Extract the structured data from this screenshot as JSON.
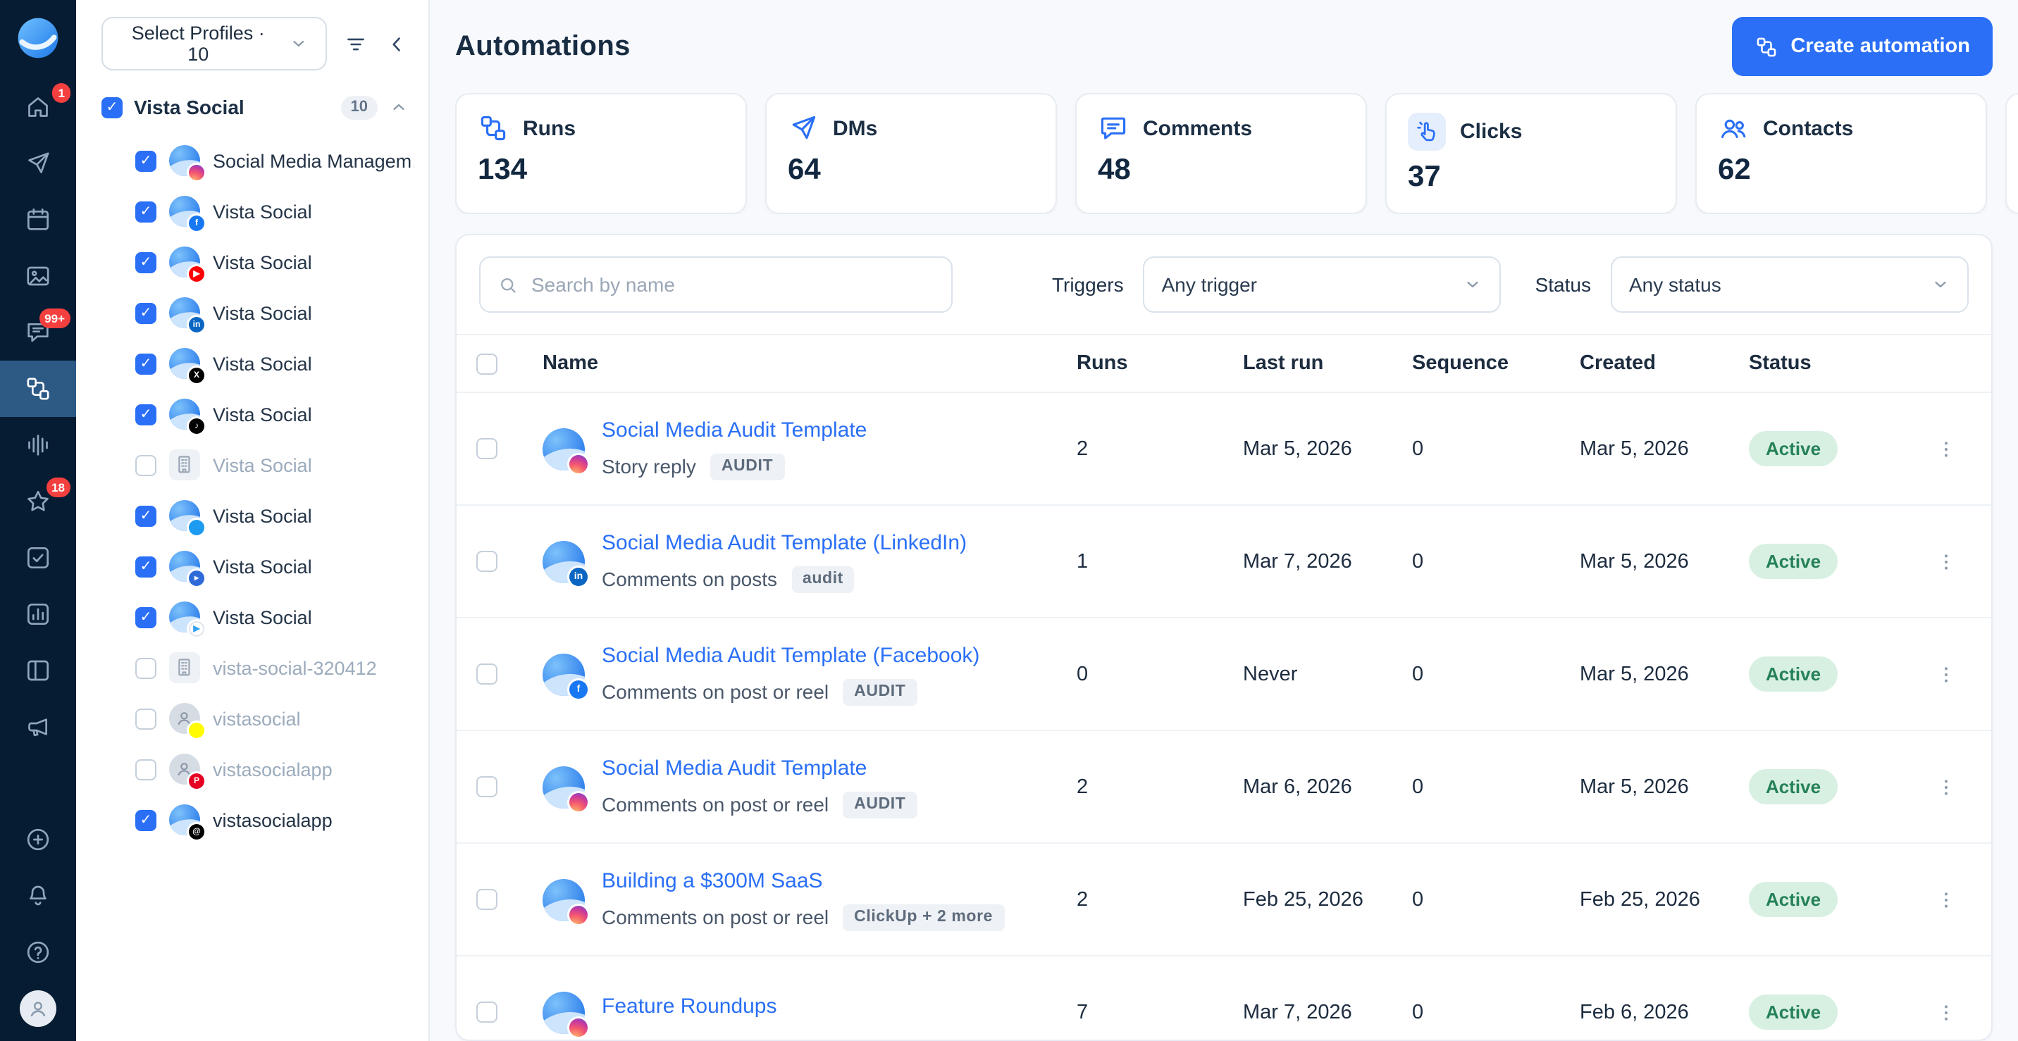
{
  "colors": {
    "accent": "#2a6ff6",
    "rail_bg": "#051c33",
    "active_nav_bg": "#2c5a85",
    "badge_red": "#f43f3f",
    "status_bg": "#d8f0e2",
    "status_text": "#258157"
  },
  "rail": {
    "badges": {
      "home": "1",
      "inbox": "99+",
      "reviews": "18"
    }
  },
  "sidebar": {
    "select_profiles_label": "Select Profiles · 10",
    "group": {
      "label": "Vista Social",
      "count": "10"
    },
    "items": [
      {
        "label": "Social Media Managem…",
        "platform": "instagram",
        "avatar": "vs",
        "checked": true,
        "muted": false
      },
      {
        "label": "Vista Social",
        "platform": "facebook",
        "avatar": "vs",
        "checked": true,
        "muted": false
      },
      {
        "label": "Vista Social",
        "platform": "youtube",
        "avatar": "vs",
        "checked": true,
        "muted": false
      },
      {
        "label": "Vista Social",
        "platform": "linkedin",
        "avatar": "vs",
        "checked": true,
        "muted": false
      },
      {
        "label": "Vista Social",
        "platform": "x",
        "avatar": "vs",
        "checked": true,
        "muted": false
      },
      {
        "label": "Vista Social",
        "platform": "tiktok",
        "avatar": "vs",
        "checked": true,
        "muted": false
      },
      {
        "label": "Vista Social",
        "platform": "business",
        "avatar": "building",
        "checked": false,
        "muted": true
      },
      {
        "label": "Vista Social",
        "platform": "twitter",
        "avatar": "vs",
        "checked": true,
        "muted": false
      },
      {
        "label": "Vista Social",
        "platform": "telegram",
        "avatar": "vs",
        "checked": true,
        "muted": false
      },
      {
        "label": "Vista Social",
        "platform": "googleplay",
        "avatar": "vs",
        "checked": true,
        "muted": false
      },
      {
        "label": "vista-social-320412",
        "platform": "business",
        "avatar": "building",
        "checked": false,
        "muted": true
      },
      {
        "label": "vistasocial",
        "platform": "snapchat",
        "avatar": "person",
        "checked": false,
        "muted": true
      },
      {
        "label": "vistasocialapp",
        "platform": "pinterest",
        "avatar": "person",
        "checked": false,
        "muted": true
      },
      {
        "label": "vistasocialapp",
        "platform": "threads",
        "avatar": "vs",
        "checked": true,
        "muted": false
      }
    ]
  },
  "header": {
    "title": "Automations",
    "create_label": "Create automation"
  },
  "stats": [
    {
      "id": "runs",
      "icon": "circuit",
      "label": "Runs",
      "value": "134"
    },
    {
      "id": "dms",
      "icon": "send",
      "label": "DMs",
      "value": "64"
    },
    {
      "id": "comments",
      "icon": "comments",
      "label": "Comments",
      "value": "48"
    },
    {
      "id": "clicks",
      "icon": "clicks",
      "label": "Clicks",
      "value": "37"
    },
    {
      "id": "contacts",
      "icon": "contacts",
      "label": "Contacts",
      "value": "62"
    }
  ],
  "filters": {
    "search_placeholder": "Search by name",
    "triggers_label": "Triggers",
    "triggers_value": "Any trigger",
    "status_label": "Status",
    "status_value": "Any status"
  },
  "table": {
    "columns": [
      "Name",
      "Runs",
      "Last run",
      "Sequence",
      "Created",
      "Status"
    ],
    "rows": [
      {
        "name": "Social Media Audit Template",
        "platform": "instagram",
        "trigger": "Story reply",
        "tag": "AUDIT",
        "runs": "2",
        "last_run": "Mar 5, 2026",
        "sequence": "0",
        "created": "Mar 5, 2026",
        "status": "Active"
      },
      {
        "name": "Social Media Audit Template (LinkedIn)",
        "platform": "linkedin",
        "trigger": "Comments on posts",
        "tag": "audit",
        "runs": "1",
        "last_run": "Mar 7, 2026",
        "sequence": "0",
        "created": "Mar 5, 2026",
        "status": "Active"
      },
      {
        "name": "Social Media Audit Template (Facebook)",
        "platform": "facebook",
        "trigger": "Comments on post or reel",
        "tag": "AUDIT",
        "runs": "0",
        "last_run": "Never",
        "sequence": "0",
        "created": "Mar 5, 2026",
        "status": "Active"
      },
      {
        "name": "Social Media Audit Template",
        "platform": "instagram",
        "trigger": "Comments on post or reel",
        "tag": "AUDIT",
        "runs": "2",
        "last_run": "Mar 6, 2026",
        "sequence": "0",
        "created": "Mar 5, 2026",
        "status": "Active"
      },
      {
        "name": "Building a $300M SaaS",
        "platform": "instagram",
        "trigger": "Comments on post or reel",
        "tag": "ClickUp + 2 more",
        "runs": "2",
        "last_run": "Feb 25, 2026",
        "sequence": "0",
        "created": "Feb 25, 2026",
        "status": "Active"
      },
      {
        "name": "Feature Roundups",
        "platform": "instagram",
        "trigger": "",
        "tag": "",
        "runs": "7",
        "last_run": "Mar 7, 2026",
        "sequence": "0",
        "created": "Feb 6, 2026",
        "status": "Active"
      }
    ]
  }
}
